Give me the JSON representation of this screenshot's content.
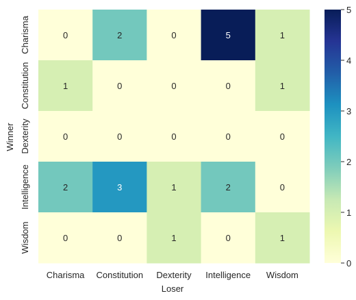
{
  "chart_data": {
    "type": "heatmap",
    "title": "",
    "xlabel": "Loser",
    "ylabel": "Winner",
    "x_categories": [
      "Charisma",
      "Constitution",
      "Dexterity",
      "Intelligence",
      "Wisdom"
    ],
    "y_categories": [
      "Charisma",
      "Constitution",
      "Dexterity",
      "Intelligence",
      "Wisdom"
    ],
    "values": [
      [
        0,
        2,
        0,
        5,
        1
      ],
      [
        1,
        0,
        0,
        0,
        1
      ],
      [
        0,
        0,
        0,
        0,
        0
      ],
      [
        2,
        3,
        1,
        2,
        0
      ],
      [
        0,
        0,
        1,
        0,
        1
      ]
    ],
    "vmin": 0,
    "vmax": 5,
    "colormap": "YlGnBu",
    "colorbar_ticks": [
      0,
      1,
      2,
      3,
      4,
      5
    ],
    "annotations": true
  }
}
